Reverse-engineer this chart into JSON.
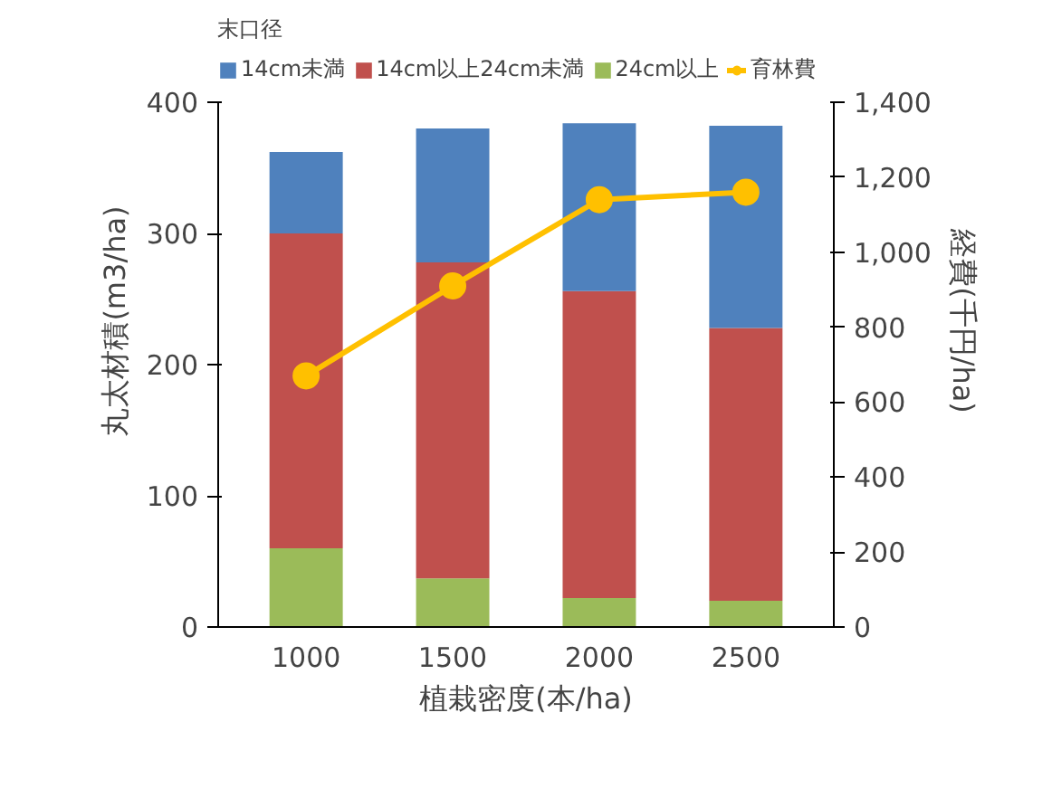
{
  "chart_data": {
    "type": "bar",
    "stacked": true,
    "legend_title": "末口径",
    "xlabel": "植栽密度(本/ha)",
    "ylabel": "丸太材積(m3/ha)",
    "y2label": "経費(千円/ha)",
    "categories": [
      "1000",
      "1500",
      "2000",
      "2500"
    ],
    "series": [
      {
        "name": "14cm未満",
        "color": "#4f81bd",
        "values": [
          62,
          102,
          128,
          154
        ]
      },
      {
        "name": "14cm以上24cm未満",
        "color": "#c0504d",
        "values": [
          240,
          241,
          234,
          208
        ]
      },
      {
        "name": "24cm以上",
        "color": "#9bbb59",
        "values": [
          60,
          37,
          22,
          20
        ]
      },
      {
        "name": "育林費",
        "color": "#ffc000",
        "type": "line",
        "axis": "y2",
        "marker": "circle",
        "values": [
          670,
          910,
          1140,
          1160
        ]
      }
    ],
    "ylim": [
      0,
      400
    ],
    "yticks": [
      0,
      100,
      200,
      300,
      400
    ],
    "y2lim": [
      0,
      1400
    ],
    "y2ticks": [
      0,
      {
        "value": 200,
        "label": "200"
      },
      {
        "value": 400,
        "label": "400"
      },
      {
        "value": 600,
        "label": "600"
      },
      {
        "value": 800,
        "label": "800"
      },
      {
        "value": 1000,
        "label": "1,000"
      },
      {
        "value": 1200,
        "label": "1,200"
      },
      {
        "value": 1400,
        "label": "1,400"
      }
    ],
    "grid": false,
    "legend": "top"
  }
}
